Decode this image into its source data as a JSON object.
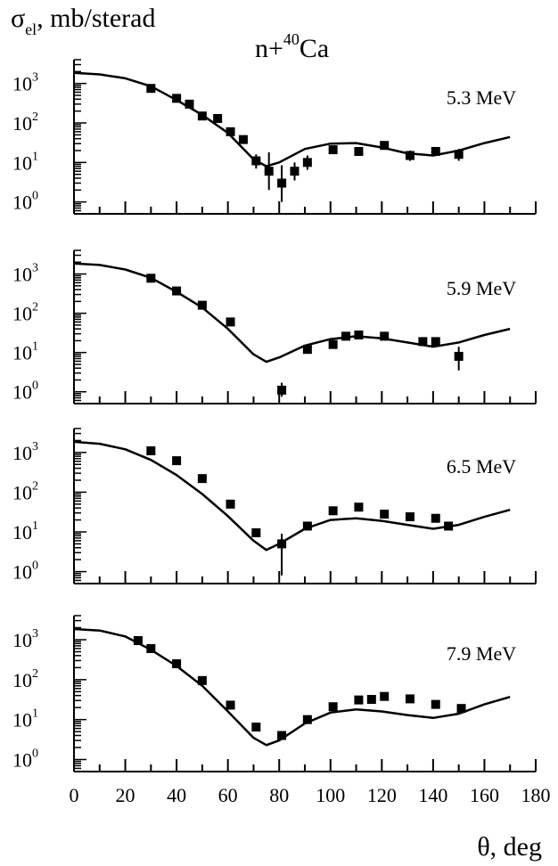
{
  "figure": {
    "ylabel": "σ",
    "ylabel_sub": "el",
    "ylabel_rest": ", mb/sterad",
    "title_prefix": "n+",
    "title_sup": "40",
    "title_suffix": "Ca",
    "xlabel": "θ, deg"
  },
  "chart_data": [
    {
      "type": "scatter",
      "energy_label": "5.3 MeV",
      "xlim": [
        0,
        180
      ],
      "ylog": true,
      "ylim": [
        0.5,
        4000
      ],
      "y_ticks": [
        1,
        10,
        100,
        1000
      ],
      "x_ticks": [
        0,
        20,
        40,
        60,
        80,
        100,
        120,
        140,
        160,
        180
      ],
      "series": [
        {
          "kind": "points",
          "x": [
            30,
            40,
            45,
            50,
            56,
            61,
            66,
            71,
            76,
            81,
            86,
            91,
            101,
            111,
            121,
            131,
            141,
            150
          ],
          "y": [
            750,
            420,
            300,
            150,
            130,
            60,
            38,
            11,
            6,
            3,
            6,
            10,
            21,
            19,
            27,
            15,
            19,
            16
          ],
          "err_lo": [
            650,
            370,
            270,
            130,
            115,
            50,
            32,
            7,
            2,
            1,
            3.5,
            6.5,
            17,
            16,
            23,
            11,
            15,
            11
          ],
          "err_hi": [
            870,
            480,
            340,
            170,
            150,
            70,
            45,
            16,
            18,
            8.5,
            10,
            15,
            25,
            22,
            32,
            20,
            24,
            22
          ]
        },
        {
          "kind": "curve",
          "x": [
            0,
            10,
            20,
            30,
            40,
            50,
            60,
            70,
            75,
            80,
            90,
            100,
            110,
            120,
            130,
            140,
            150,
            160,
            170
          ],
          "y": [
            1850,
            1700,
            1350,
            850,
            380,
            160,
            56,
            12,
            8,
            10,
            22,
            30,
            31,
            24,
            17,
            15,
            20,
            31,
            44
          ]
        }
      ]
    },
    {
      "type": "scatter",
      "energy_label": "5.9 MeV",
      "xlim": [
        0,
        180
      ],
      "ylog": true,
      "ylim": [
        0.5,
        4000
      ],
      "y_ticks": [
        1,
        10,
        100,
        1000
      ],
      "x_ticks": [
        0,
        20,
        40,
        60,
        80,
        100,
        120,
        140,
        160,
        180
      ],
      "series": [
        {
          "kind": "points",
          "x": [
            30,
            40,
            50,
            61,
            81,
            91,
            101,
            106,
            111,
            121,
            136,
            141,
            150
          ],
          "y": [
            780,
            370,
            160,
            60,
            1.1,
            12,
            16,
            26,
            28,
            26,
            19,
            19,
            8
          ],
          "err_lo": [
            700,
            330,
            145,
            54,
            0.75,
            10.5,
            13.5,
            22,
            24,
            23,
            16,
            16,
            3.5
          ],
          "err_hi": [
            870,
            410,
            178,
            67,
            1.7,
            14,
            19,
            30,
            33,
            30,
            22,
            22,
            14
          ]
        },
        {
          "kind": "curve",
          "x": [
            0,
            10,
            20,
            30,
            40,
            50,
            60,
            70,
            75,
            80,
            90,
            100,
            110,
            120,
            130,
            140,
            150,
            160,
            170
          ],
          "y": [
            1850,
            1700,
            1300,
            800,
            350,
            140,
            40,
            9,
            5.8,
            7.5,
            15,
            22,
            26,
            23,
            18,
            14,
            18,
            28,
            40
          ]
        }
      ]
    },
    {
      "type": "scatter",
      "energy_label": "6.5 MeV",
      "xlim": [
        0,
        180
      ],
      "ylog": true,
      "ylim": [
        0.5,
        4000
      ],
      "y_ticks": [
        1,
        10,
        100,
        1000
      ],
      "x_ticks": [
        0,
        20,
        40,
        60,
        80,
        100,
        120,
        140,
        160,
        180
      ],
      "series": [
        {
          "kind": "points",
          "x": [
            30,
            40,
            50,
            61,
            71,
            81,
            91,
            101,
            111,
            121,
            131,
            141,
            146
          ],
          "y": [
            1100,
            620,
            220,
            50,
            9.5,
            5,
            14,
            34,
            42,
            28,
            24,
            22,
            14
          ],
          "err_lo": [
            980,
            560,
            195,
            45,
            8.4,
            0.8,
            12,
            30,
            37,
            25,
            21,
            19,
            11
          ],
          "err_hi": [
            1230,
            690,
            245,
            56,
            10.7,
            9,
            16,
            38,
            47,
            31,
            27,
            25,
            17
          ]
        },
        {
          "kind": "curve",
          "x": [
            0,
            10,
            20,
            30,
            40,
            50,
            60,
            70,
            75,
            80,
            90,
            100,
            110,
            120,
            130,
            140,
            150,
            160,
            170
          ],
          "y": [
            1850,
            1650,
            1200,
            650,
            270,
            90,
            25,
            6,
            3.5,
            5,
            12,
            20,
            22,
            19,
            15,
            12,
            15,
            24,
            36
          ]
        }
      ]
    },
    {
      "type": "scatter",
      "energy_label": "7.9 MeV",
      "xlim": [
        0,
        180
      ],
      "ylog": true,
      "ylim": [
        0.5,
        4000
      ],
      "y_ticks": [
        1,
        10,
        100,
        1000
      ],
      "x_ticks": [
        0,
        20,
        40,
        60,
        80,
        100,
        120,
        140,
        160,
        180
      ],
      "series": [
        {
          "kind": "points",
          "x": [
            25,
            30,
            40,
            50,
            61,
            71,
            81,
            91,
            101,
            111,
            116,
            121,
            131,
            141,
            151
          ],
          "y": [
            950,
            600,
            250,
            95,
            23,
            6.5,
            4,
            10,
            21,
            31,
            32,
            38,
            33,
            24,
            19
          ],
          "err_lo": [
            880,
            550,
            225,
            86,
            21,
            5.8,
            3.5,
            9,
            19,
            28,
            29,
            34,
            30,
            21,
            17
          ],
          "err_hi": [
            1030,
            650,
            275,
            104,
            25,
            7.2,
            4.5,
            11,
            23,
            34,
            35,
            42,
            36,
            27,
            21
          ]
        },
        {
          "kind": "curve",
          "x": [
            0,
            10,
            20,
            30,
            40,
            50,
            60,
            70,
            75,
            80,
            90,
            100,
            110,
            120,
            130,
            140,
            150,
            160,
            170
          ],
          "y": [
            1850,
            1700,
            1200,
            560,
            220,
            70,
            16,
            3.5,
            2.3,
            3,
            8,
            15,
            18,
            16,
            13,
            11,
            14,
            24,
            37
          ]
        }
      ]
    }
  ]
}
